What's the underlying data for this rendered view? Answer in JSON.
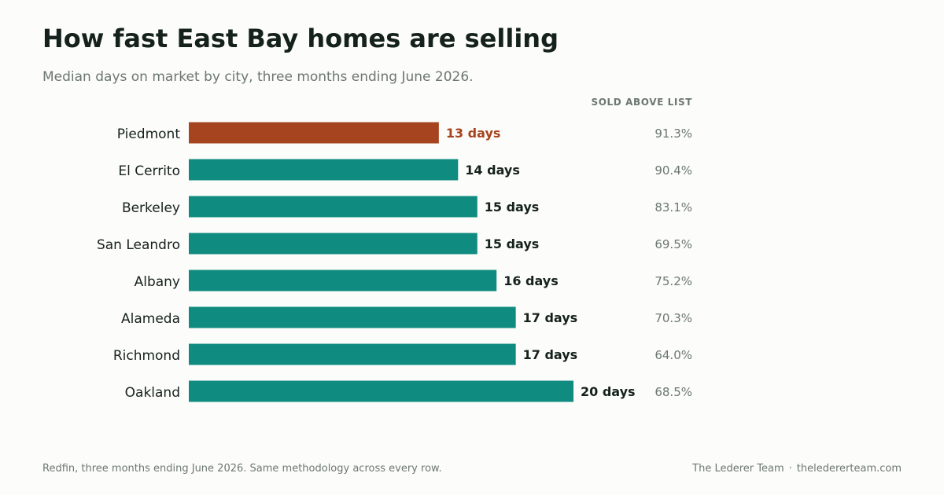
{
  "header": {
    "title": "How fast East Bay homes are selling",
    "subtitle": "Median days on market by city, three months ending June 2026.",
    "column_header": "SOLD ABOVE LIST"
  },
  "footer": {
    "source": "Redfin, three months ending June 2026. Same methodology across every row.",
    "brand": "The Lederer Team",
    "separator": "·",
    "website": "theledererteam.com"
  },
  "colors": {
    "highlight": "#a5441e",
    "bar": "#108b7f",
    "label": "#15211d",
    "muted": "#6b7770"
  },
  "chart_data": {
    "type": "bar",
    "orientation": "horizontal",
    "categories": [
      "Piedmont",
      "El Cerrito",
      "Berkeley",
      "San Leandro",
      "Albany",
      "Alameda",
      "Richmond",
      "Oakland"
    ],
    "values": [
      13,
      14,
      15,
      15,
      16,
      17,
      17,
      20
    ],
    "value_labels": [
      "13 days",
      "14 days",
      "15 days",
      "15 days",
      "16 days",
      "17 days",
      "17 days",
      "20 days"
    ],
    "sold_above_list": [
      "91.3%",
      "90.4%",
      "83.1%",
      "69.5%",
      "75.2%",
      "70.3%",
      "64.0%",
      "68.5%"
    ],
    "highlighted_category": "Piedmont",
    "xlim": [
      0,
      20
    ]
  }
}
